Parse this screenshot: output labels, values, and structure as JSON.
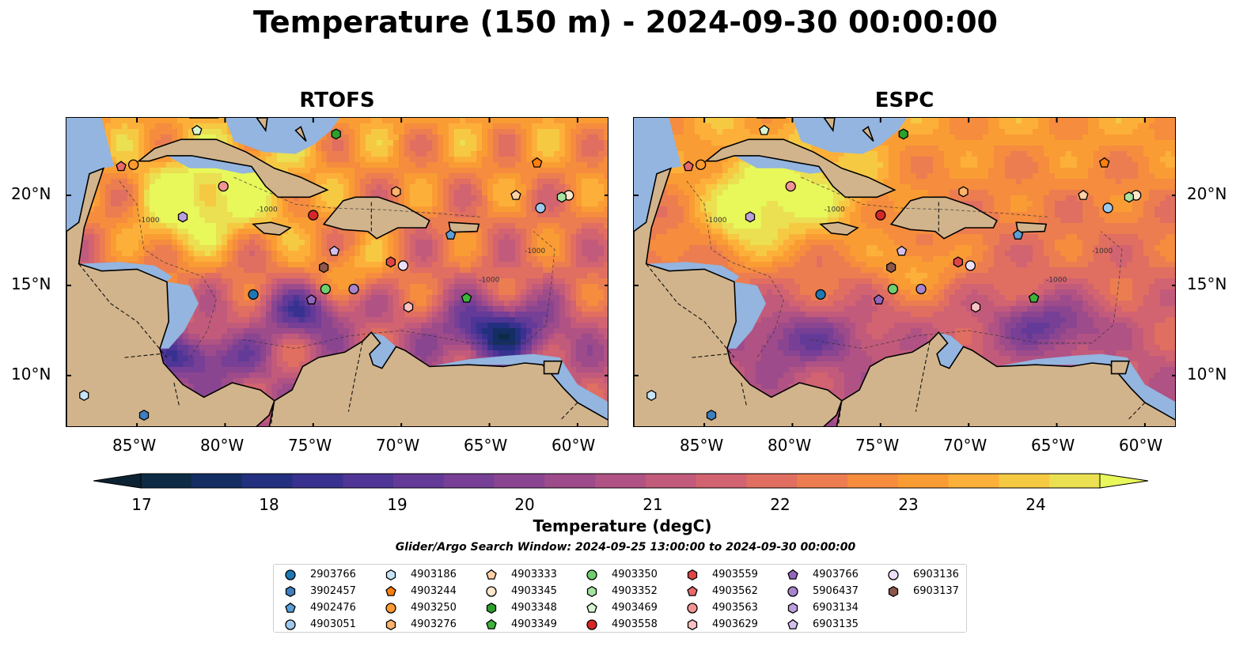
{
  "suptitle": "Temperature (150 m) - 2024-09-30 00:00:00",
  "panels": [
    {
      "title": "RTOFS",
      "id": "rtofs"
    },
    {
      "title": "ESPC",
      "id": "espc"
    }
  ],
  "axes": {
    "x_ticks": [
      "85°W",
      "80°W",
      "75°W",
      "70°W",
      "65°W",
      "60°W"
    ],
    "y_ticks": [
      "20°N",
      "15°N",
      "10°N"
    ],
    "lon_range": [
      -89,
      -58.2
    ],
    "lat_range": [
      7.1,
      24.3
    ],
    "isobath_label": "-1000"
  },
  "colorbar": {
    "label": "Temperature (degC)",
    "ticks": [
      "17",
      "18",
      "19",
      "20",
      "21",
      "22",
      "23",
      "24"
    ],
    "min": 16.6,
    "max": 24.6,
    "colors": [
      "#0d2b45",
      "#142e63",
      "#232f7f",
      "#38318f",
      "#4e3596",
      "#633a97",
      "#773f95",
      "#8a4591",
      "#9d4b8a",
      "#b05284",
      "#c25b7b",
      "#d26370",
      "#e06e61",
      "#ec7d50",
      "#f58c3e",
      "#fa9c34",
      "#fcb03a",
      "#f6c943",
      "#eae052"
    ],
    "over_color": "#e8f75a",
    "under_color": "#0d2333"
  },
  "window_text": "Glider/Argo Search Window: 2024-09-25 13:00:00 to 2024-09-30 00:00:00",
  "colors": {
    "land": "#d2b48c",
    "shallow": "#93b5e0",
    "deep_bg": "#0a2438"
  },
  "legend": [
    {
      "id": "2903766",
      "marker": "circle",
      "color": "#1f77b4"
    },
    {
      "id": "3902457",
      "marker": "hexagon",
      "color": "#3f7fc0"
    },
    {
      "id": "4902476",
      "marker": "pentagon",
      "color": "#5a9fd8"
    },
    {
      "id": "4903051",
      "marker": "circle",
      "color": "#9ec8ee"
    },
    {
      "id": "4903186",
      "marker": "hexagon",
      "color": "#c6e4f6"
    },
    {
      "id": "4903244",
      "marker": "pentagon",
      "color": "#ff7f0e"
    },
    {
      "id": "4903250",
      "marker": "circle",
      "color": "#ff9a2e"
    },
    {
      "id": "4903276",
      "marker": "hexagon",
      "color": "#ffb36b"
    },
    {
      "id": "4903333",
      "marker": "pentagon",
      "color": "#ffd1a6"
    },
    {
      "id": "4903345",
      "marker": "circle",
      "color": "#ffe6cc"
    },
    {
      "id": "4903348",
      "marker": "hexagon",
      "color": "#2ca02c"
    },
    {
      "id": "4903349",
      "marker": "pentagon",
      "color": "#3cb43c"
    },
    {
      "id": "4903350",
      "marker": "circle",
      "color": "#6fcf6f"
    },
    {
      "id": "4903352",
      "marker": "hexagon",
      "color": "#a6e3a1"
    },
    {
      "id": "4903469",
      "marker": "pentagon",
      "color": "#d6f5d0"
    },
    {
      "id": "4903558",
      "marker": "circle",
      "color": "#d62728"
    },
    {
      "id": "4903559",
      "marker": "hexagon",
      "color": "#e04545"
    },
    {
      "id": "4903562",
      "marker": "pentagon",
      "color": "#e86a6a"
    },
    {
      "id": "4903563",
      "marker": "circle",
      "color": "#f29494"
    },
    {
      "id": "4903629",
      "marker": "hexagon",
      "color": "#f9c2c2"
    },
    {
      "id": "4903766",
      "marker": "pentagon",
      "color": "#9467bd"
    },
    {
      "id": "5906437",
      "marker": "circle",
      "color": "#a884cc"
    },
    {
      "id": "6903134",
      "marker": "hexagon",
      "color": "#bca0db"
    },
    {
      "id": "6903135",
      "marker": "pentagon",
      "color": "#d4c0ec"
    },
    {
      "id": "6903136",
      "marker": "circle",
      "color": "#ecdff8"
    },
    {
      "id": "6903137",
      "marker": "hexagon",
      "color": "#8c564b"
    }
  ],
  "platforms": [
    {
      "id": "2903766",
      "lon": -78.4,
      "lat": 14.5
    },
    {
      "id": "3902457",
      "lon": -84.6,
      "lat": 7.8
    },
    {
      "id": "4902476",
      "lon": -67.2,
      "lat": 17.8
    },
    {
      "id": "4903051",
      "lon": -62.1,
      "lat": 19.3
    },
    {
      "id": "4903186",
      "lon": -88.0,
      "lat": 8.9
    },
    {
      "id": "4903244",
      "lon": -62.3,
      "lat": 21.8
    },
    {
      "id": "4903250",
      "lon": -85.2,
      "lat": 21.7
    },
    {
      "id": "4903276",
      "lon": -70.3,
      "lat": 20.2
    },
    {
      "id": "4903333",
      "lon": -63.5,
      "lat": 20.0
    },
    {
      "id": "4903345",
      "lon": -60.5,
      "lat": 20.0
    },
    {
      "id": "4903348",
      "lon": -73.7,
      "lat": 23.4
    },
    {
      "id": "4903349",
      "lon": -66.3,
      "lat": 14.3
    },
    {
      "id": "4903350",
      "lon": -74.3,
      "lat": 14.8
    },
    {
      "id": "4903352",
      "lon": -60.9,
      "lat": 19.9
    },
    {
      "id": "4903469",
      "lon": -81.6,
      "lat": 23.6
    },
    {
      "id": "4903558",
      "lon": -75.0,
      "lat": 18.9
    },
    {
      "id": "4903559",
      "lon": -70.6,
      "lat": 16.3
    },
    {
      "id": "4903562",
      "lon": -85.9,
      "lat": 21.6
    },
    {
      "id": "4903563",
      "lon": -80.1,
      "lat": 20.5
    },
    {
      "id": "4903629",
      "lon": -69.6,
      "lat": 13.8
    },
    {
      "id": "4903766",
      "lon": -75.1,
      "lat": 14.2
    },
    {
      "id": "5906437",
      "lon": -72.7,
      "lat": 14.8
    },
    {
      "id": "6903134",
      "lon": -82.4,
      "lat": 18.8
    },
    {
      "id": "6903135",
      "lon": -73.8,
      "lat": 16.9
    },
    {
      "id": "6903136",
      "lon": -69.9,
      "lat": 16.1
    },
    {
      "id": "6903137",
      "lon": -74.4,
      "lat": 16.0
    }
  ]
}
